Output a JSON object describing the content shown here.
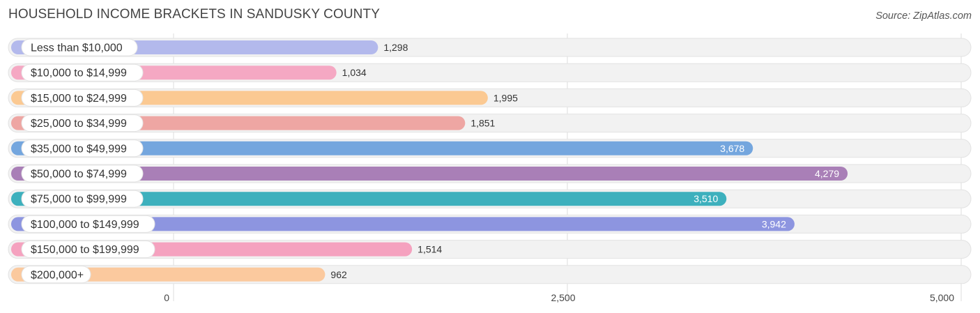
{
  "header": {
    "title": "HOUSEHOLD INCOME BRACKETS IN SANDUSKY COUNTY",
    "source": "Source: ZipAtlas.com"
  },
  "chart_data": {
    "type": "bar",
    "orientation": "horizontal",
    "title": "HOUSEHOLD INCOME BRACKETS IN SANDUSKY COUNTY",
    "xlabel": "",
    "ylabel": "",
    "xlim": [
      0,
      5000
    ],
    "x_ticks": [
      0,
      2500,
      5000
    ],
    "x_tick_labels": [
      "0",
      "2,500",
      "5,000"
    ],
    "grid": true,
    "categories": [
      "Less than $10,000",
      "$10,000 to $14,999",
      "$15,000 to $24,999",
      "$25,000 to $34,999",
      "$35,000 to $49,999",
      "$50,000 to $74,999",
      "$75,000 to $99,999",
      "$100,000 to $149,999",
      "$150,000 to $199,999",
      "$200,000+"
    ],
    "values": [
      1298,
      1034,
      1995,
      1851,
      3678,
      4279,
      3510,
      3942,
      1514,
      962
    ],
    "value_labels": [
      "1,298",
      "1,034",
      "1,995",
      "1,851",
      "3,678",
      "4,279",
      "3,510",
      "3,942",
      "1,514",
      "962"
    ],
    "colors": [
      "#b3b9ec",
      "#f5a8c3",
      "#fbc992",
      "#eea6a3",
      "#74a6de",
      "#a97fb7",
      "#3db0bd",
      "#8d95e0",
      "#f5a2bf",
      "#fbc99e"
    ]
  }
}
